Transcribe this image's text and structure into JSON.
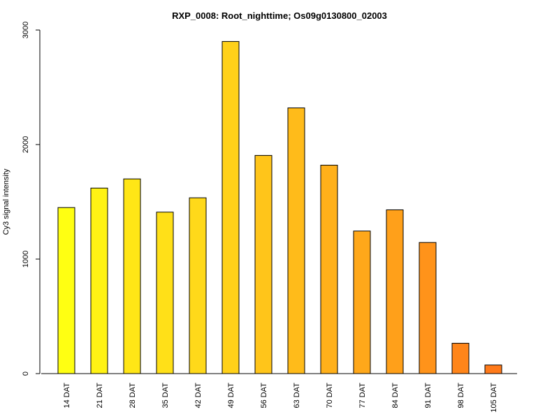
{
  "chart_data": {
    "type": "bar",
    "title": "RXP_0008: Root_nighttime; Os09g0130800_02003",
    "xlabel": "",
    "ylabel": "Cy3 signal intensity",
    "ylim": [
      0,
      3000
    ],
    "yticks": [
      0,
      1000,
      2000,
      3000
    ],
    "categories": [
      "14 DAT",
      "21 DAT",
      "28 DAT",
      "35 DAT",
      "42 DAT",
      "49 DAT",
      "56 DAT",
      "63 DAT",
      "70 DAT",
      "77 DAT",
      "84 DAT",
      "91 DAT",
      "98 DAT",
      "105 DAT"
    ],
    "values": [
      1450,
      1620,
      1700,
      1410,
      1535,
      2900,
      1905,
      2320,
      1820,
      1245,
      1430,
      1145,
      265,
      75
    ],
    "colors": [
      "#FFFF12",
      "#FFF214",
      "#FFE616",
      "#FFE018",
      "#FFD91A",
      "#FFD11A",
      "#FFC51A",
      "#FFBB1A",
      "#FFB01A",
      "#FFA81A",
      "#FFA01A",
      "#FF931A",
      "#FF851A",
      "#FF7A1A"
    ],
    "grid": false,
    "legend": "none"
  }
}
